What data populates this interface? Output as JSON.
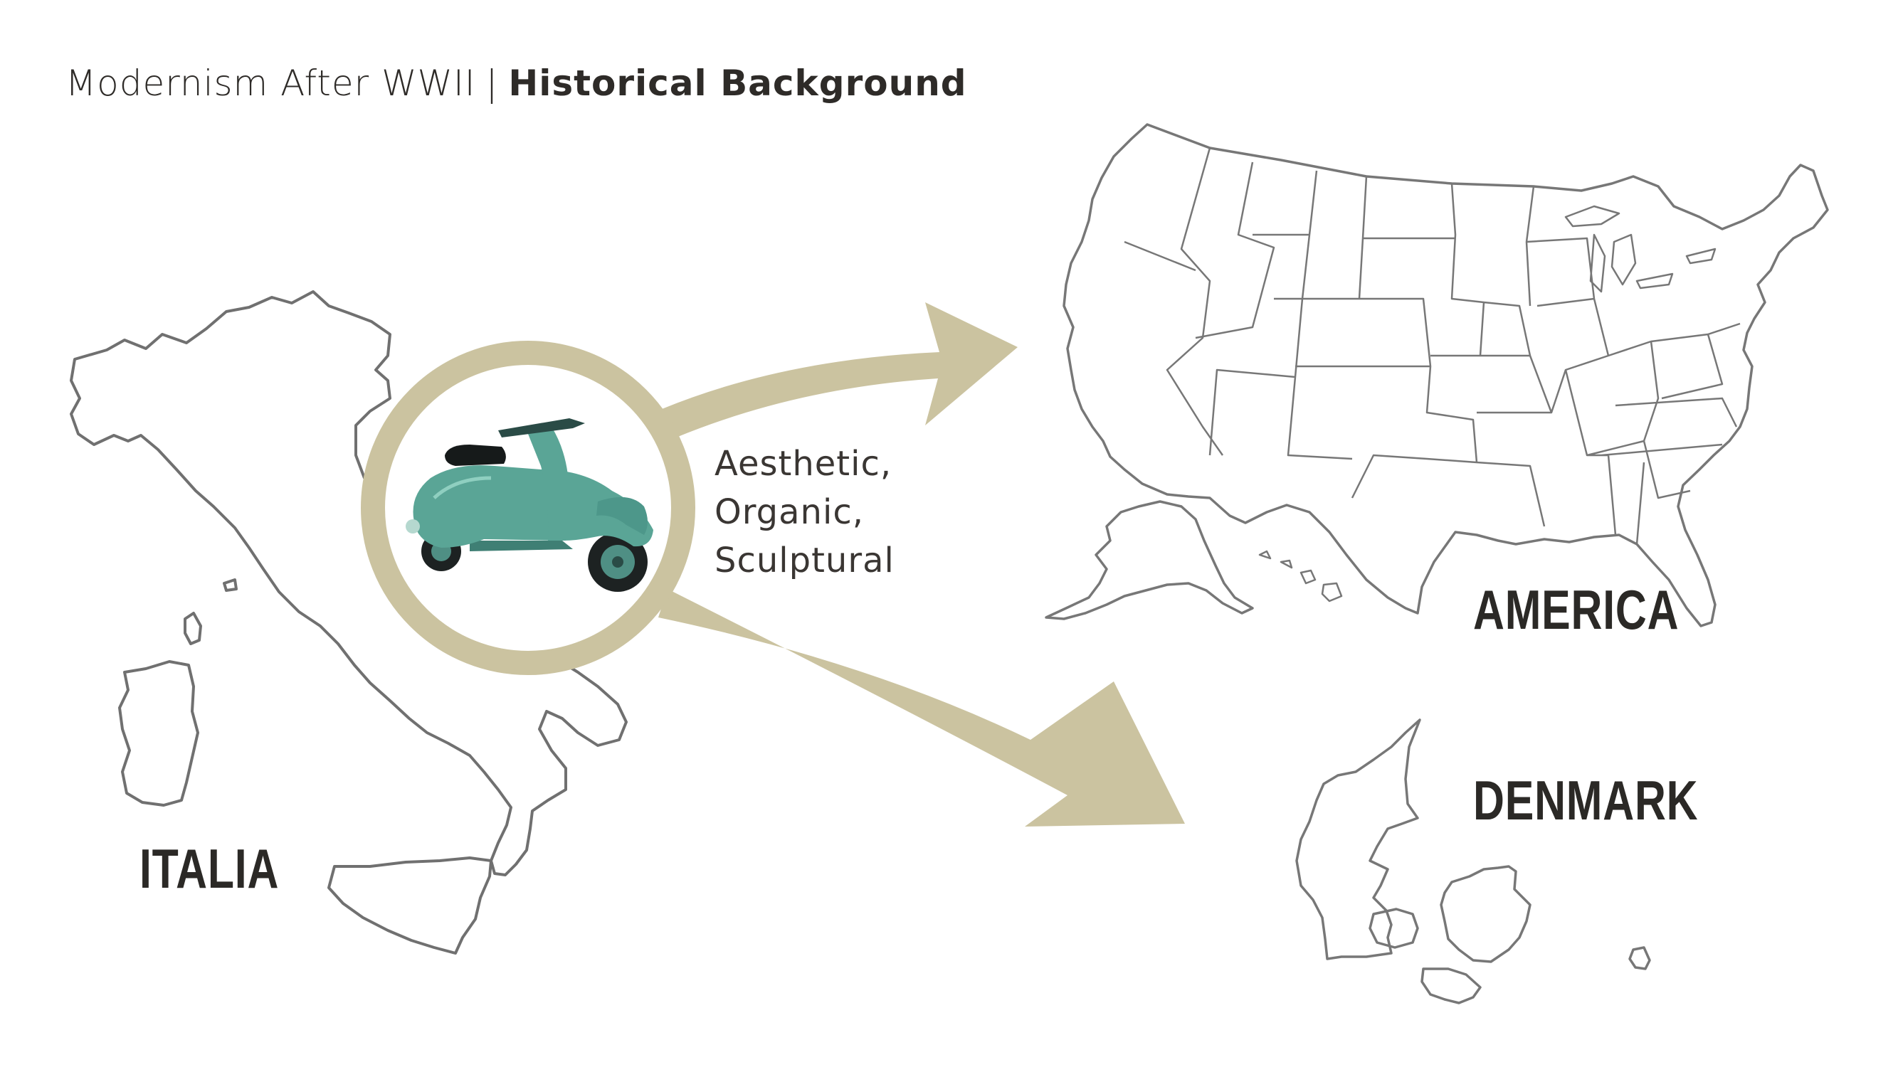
{
  "header": {
    "section": "Modernism After WWII",
    "separator": "|",
    "topic": "Historical Background"
  },
  "labels": {
    "italia": "ITALIA",
    "america": "AMERICA",
    "denmark": "DENMARK"
  },
  "traits": [
    "Aesthetic,",
    "Organic,",
    "Sculptural"
  ],
  "colors": {
    "accent": "#cbc3a0",
    "map_outline": "#6e6e6e",
    "label_text": "#2b2926",
    "scooter_body": "#5aa596"
  }
}
